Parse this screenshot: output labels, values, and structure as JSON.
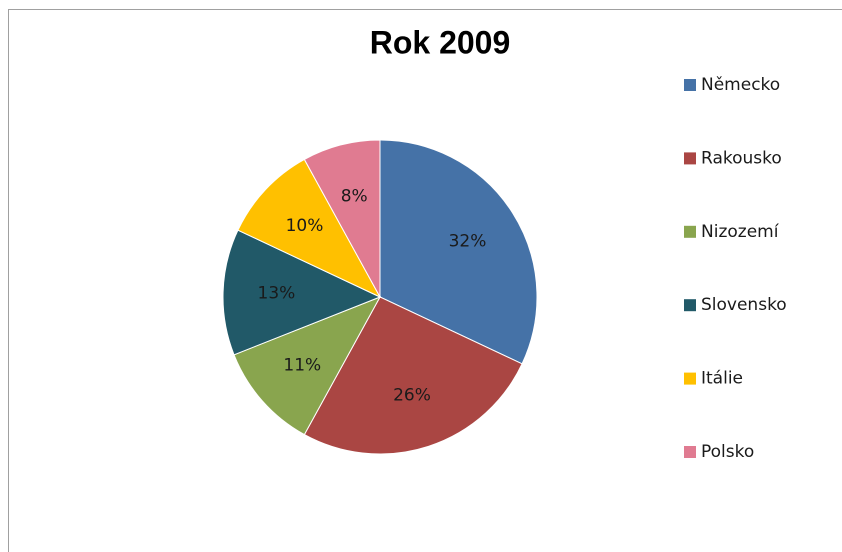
{
  "chart_data": {
    "type": "pie",
    "title": "Rok 2009",
    "categories": [
      "Německo",
      "Rakousko",
      "Nizozemí",
      "Slovensko",
      "Itálie",
      "Polsko"
    ],
    "values": [
      32,
      26,
      11,
      13,
      10,
      8
    ],
    "value_labels": [
      "32%",
      "26%",
      "11%",
      "13%",
      "10%",
      "8%"
    ],
    "colors": [
      "#4572a7",
      "#aa4643",
      "#89a54e",
      "#215968",
      "#ffc000",
      "#e07b91"
    ],
    "legend": "right"
  }
}
